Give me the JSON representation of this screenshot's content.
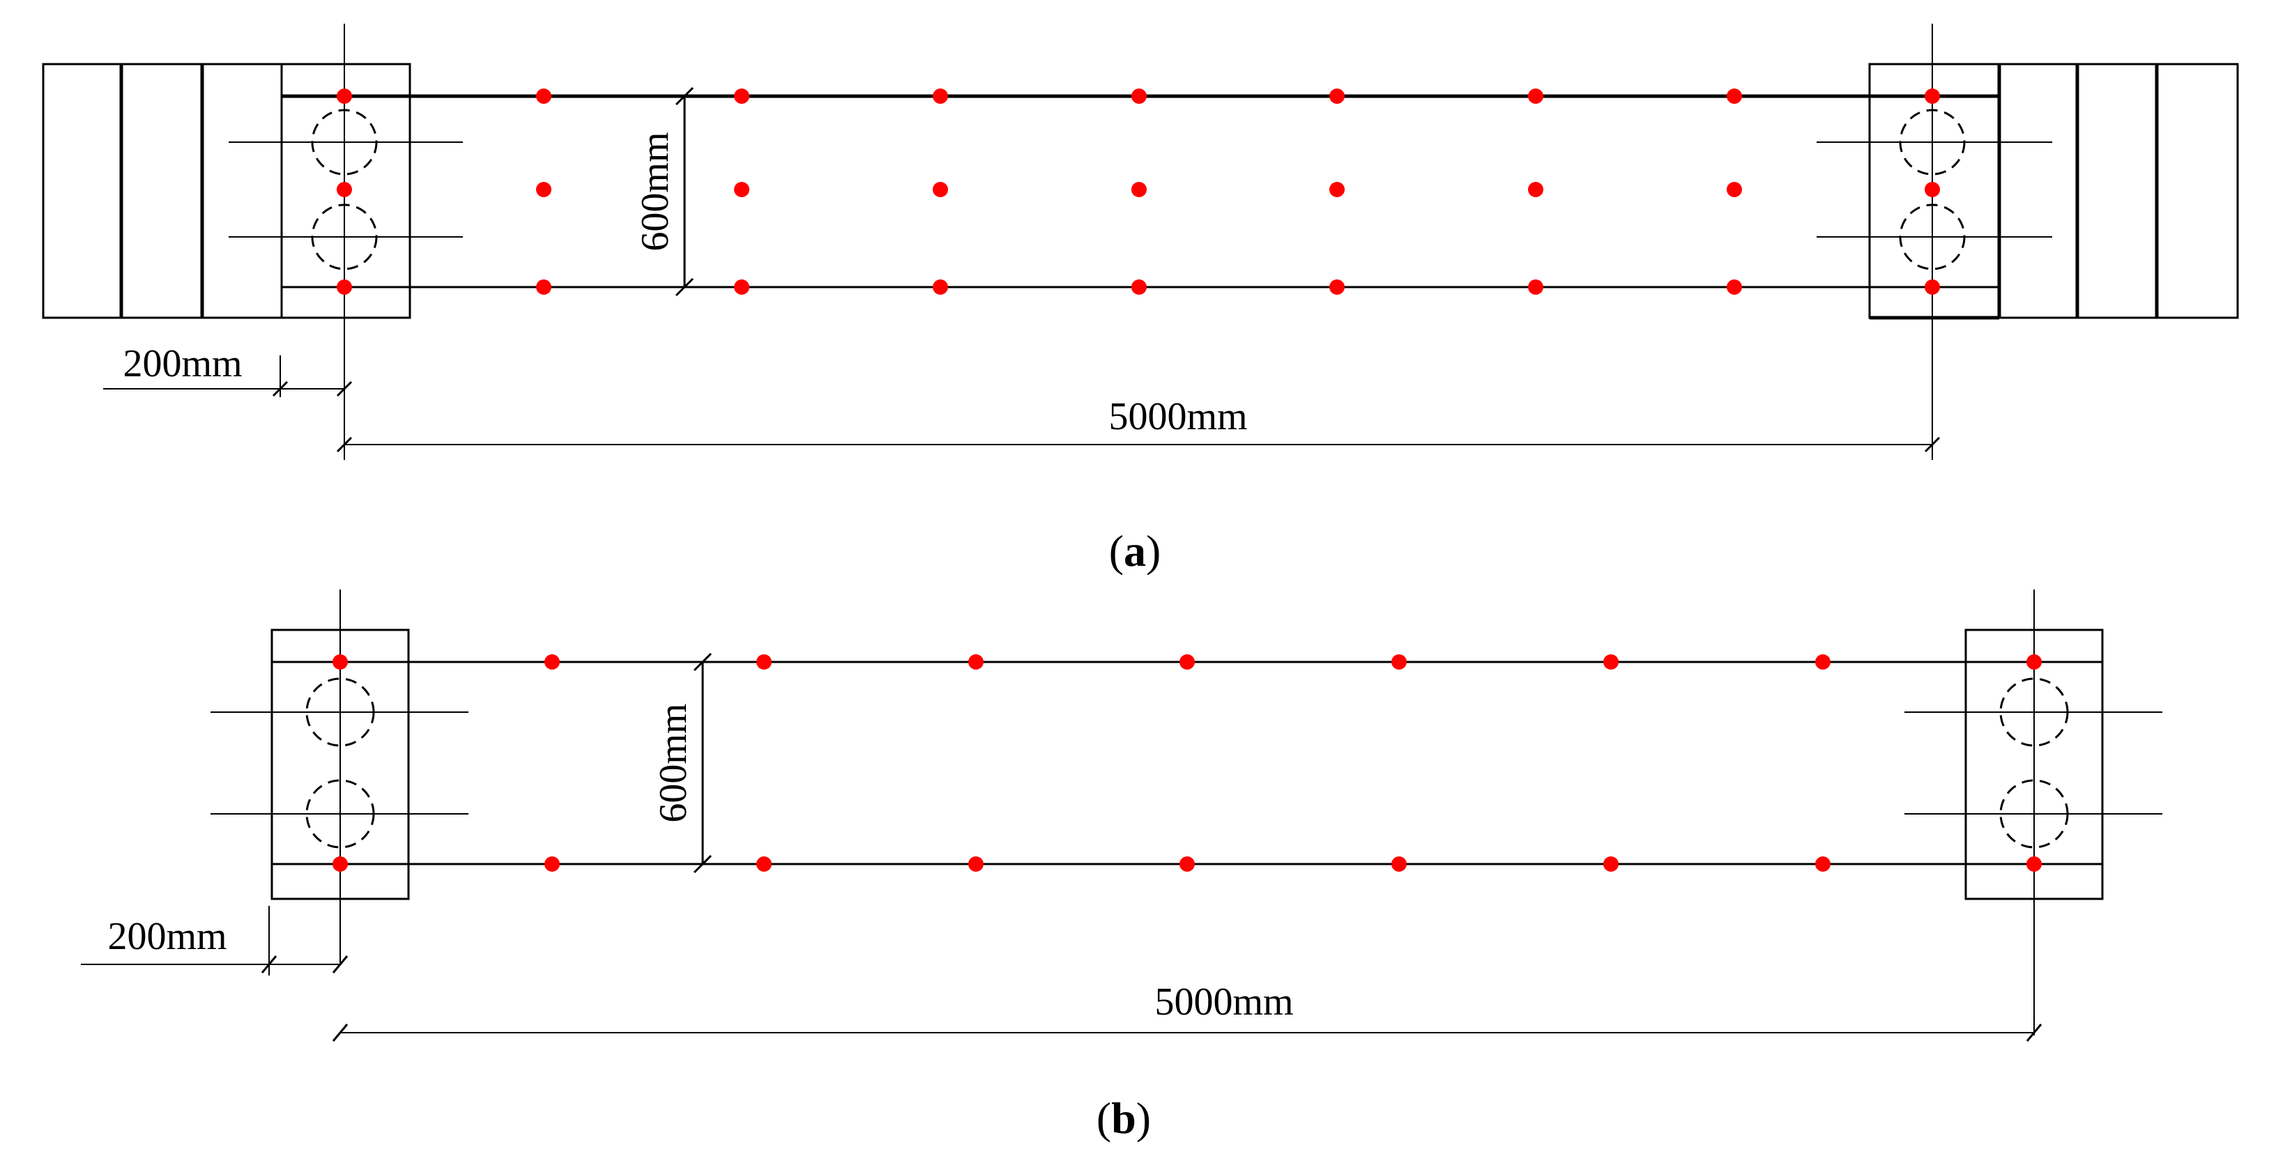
{
  "panels": [
    {
      "id": "a",
      "caption_open": "(",
      "caption_letter": "a",
      "caption_close": ")",
      "dims": {
        "depth": "600mm",
        "offset": "200mm",
        "span": "5000mm"
      },
      "dot_color": "#ff0000"
    },
    {
      "id": "b",
      "caption_open": "(",
      "caption_letter": "b",
      "caption_close": ")",
      "dims": {
        "depth": "600mm",
        "offset": "200mm",
        "span": "5000mm"
      },
      "dot_color": "#ff0000"
    }
  ]
}
